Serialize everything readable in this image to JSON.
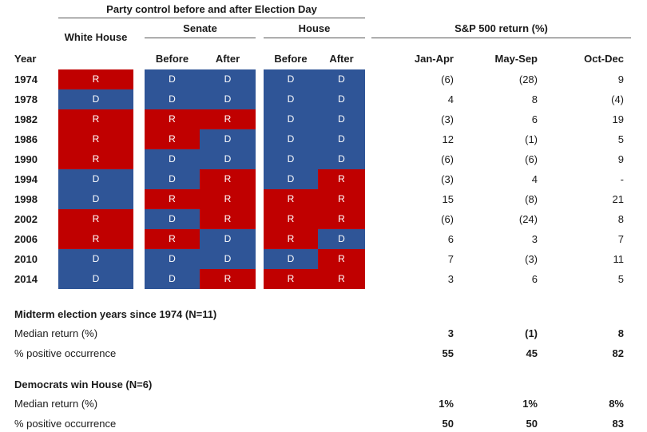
{
  "header": {
    "title": "Party control before and after Election Day",
    "white_house": "White House",
    "senate": "Senate",
    "house": "House",
    "sp500": "S&P 500 return (%)",
    "columns": [
      "Year",
      "Before",
      "After",
      "Before",
      "After",
      "Jan-Apr",
      "May-Sep",
      "Oct-Dec"
    ]
  },
  "party_colors": {
    "R": "#c00000",
    "D": "#2f5597"
  },
  "rows": [
    [
      "1974",
      "R",
      "D",
      "D",
      "D",
      "D",
      "(6)",
      "(28)",
      "9"
    ],
    [
      "1978",
      "D",
      "D",
      "D",
      "D",
      "D",
      "4",
      "8",
      "(4)"
    ],
    [
      "1982",
      "R",
      "R",
      "R",
      "D",
      "D",
      "(3)",
      "6",
      "19"
    ],
    [
      "1986",
      "R",
      "R",
      "D",
      "D",
      "D",
      "12",
      "(1)",
      "5"
    ],
    [
      "1990",
      "R",
      "D",
      "D",
      "D",
      "D",
      "(6)",
      "(6)",
      "9"
    ],
    [
      "1994",
      "D",
      "D",
      "R",
      "D",
      "R",
      "(3)",
      "4",
      "-"
    ],
    [
      "1998",
      "D",
      "R",
      "R",
      "R",
      "R",
      "15",
      "(8)",
      "21"
    ],
    [
      "2002",
      "R",
      "D",
      "R",
      "R",
      "R",
      "(6)",
      "(24)",
      "8"
    ],
    [
      "2006",
      "R",
      "R",
      "D",
      "R",
      "D",
      "6",
      "3",
      "7"
    ],
    [
      "2010",
      "D",
      "D",
      "D",
      "D",
      "R",
      "7",
      "(3)",
      "11"
    ],
    [
      "2014",
      "D",
      "D",
      "R",
      "R",
      "R",
      "3",
      "6",
      "5"
    ]
  ],
  "sections": [
    {
      "title": "Midterm election years since 1974 (N=11)",
      "rows": [
        {
          "label": "Median return (%)",
          "values": [
            "3",
            "(1)",
            "8"
          ]
        },
        {
          "label": "% positive occurrence",
          "values": [
            "55",
            "45",
            "82"
          ]
        }
      ]
    },
    {
      "title": "Democrats win House (N=6)",
      "rows": [
        {
          "label": "Median return (%)",
          "values": [
            "1%",
            "1%",
            "8%"
          ]
        },
        {
          "label": "% positive occurrence",
          "values": [
            "50",
            "50",
            "83"
          ]
        }
      ]
    }
  ]
}
